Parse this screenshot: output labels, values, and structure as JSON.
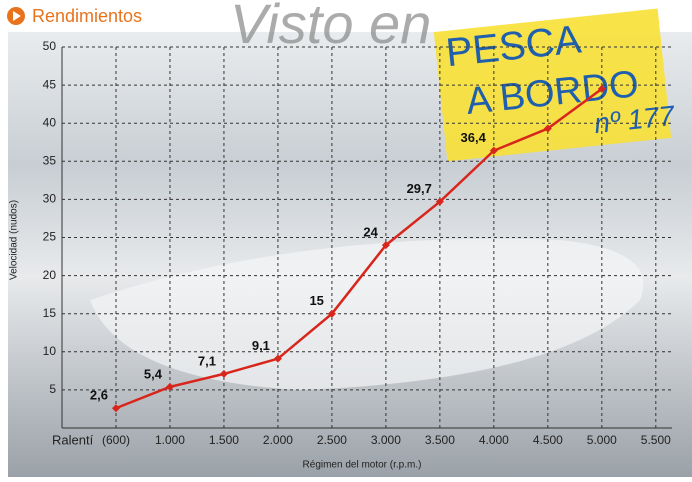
{
  "chart_data": {
    "type": "line",
    "title": "Rendimientos",
    "watermark": "Visto en",
    "logo": [
      "PESCA",
      "A BORDO",
      "nº 177"
    ],
    "x_label": "Régimen del motor (r.p.m.)",
    "x_prefix": "Ralentí",
    "y_label": "Velocidad (nudos)",
    "categories": [
      "(600)",
      "1.000",
      "1.500",
      "2.000",
      "2.500",
      "3.000",
      "3.500",
      "4.000",
      "4.500",
      "5.000",
      "5.500"
    ],
    "values": [
      2.6,
      5.4,
      7.1,
      9.1,
      15,
      24,
      29.7,
      36.4,
      39.3,
      44.5,
      null
    ],
    "value_labels": [
      "2,6",
      "5,4",
      "7,1",
      "9,1",
      "15",
      "24",
      "29,7",
      "36,4",
      null,
      null,
      null
    ],
    "color": "#d8261c",
    "ylim": [
      0,
      50
    ],
    "yticks": [
      5,
      10,
      15,
      20,
      25,
      30,
      35,
      40,
      45,
      50
    ],
    "grid": true
  }
}
